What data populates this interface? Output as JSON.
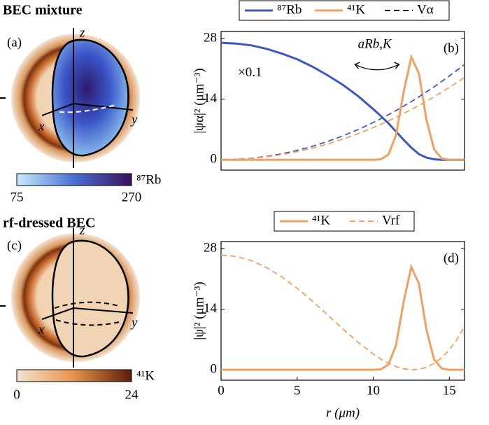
{
  "chart_data": [
    {
      "type": "line",
      "panel_label": "(b)",
      "y_label": "|ψα|² (μm⁻³)",
      "annotations": [
        "×0.1",
        "aRb,K"
      ],
      "x": [
        0,
        1,
        2,
        3,
        4,
        5,
        6,
        7,
        8,
        9,
        10,
        10.5,
        11,
        11.5,
        12,
        12.5,
        13,
        13.5,
        14,
        14.5,
        15,
        15.5,
        16
      ],
      "xlim": [
        0,
        16
      ],
      "ylim": [
        -2.4,
        29.6
      ],
      "yticks": [
        0,
        14,
        28
      ],
      "series": [
        {
          "name": "⁸⁷Rb",
          "color": "#3d57c7",
          "dash": "solid",
          "values": [
            27,
            26.8,
            26.4,
            25.6,
            24.5,
            23.2,
            21.5,
            19.5,
            17.3,
            14.7,
            11.7,
            10.1,
            8.4,
            6.5,
            4.6,
            2.8,
            1.3,
            0.5,
            0.1,
            0,
            0,
            0,
            0
          ]
        },
        {
          "name": "⁴¹K",
          "color": "#f0a060",
          "dash": "solid",
          "values": [
            0,
            0,
            0,
            0,
            0,
            0,
            0,
            0,
            0,
            0,
            0,
            0.1,
            1.2,
            5.7,
            15.7,
            23.7,
            19.9,
            9.2,
            2.4,
            0.3,
            0,
            0,
            0
          ]
        },
        {
          "name": "Vα",
          "color": "#000000",
          "dash": "dashed",
          "values": null
        },
        {
          "name": null,
          "color": "#3d57c7",
          "dash": "dashed",
          "values": [
            0,
            0.09,
            0.34,
            0.77,
            1.38,
            2.15,
            3.09,
            4.21,
            5.5,
            6.96,
            8.59,
            9.47,
            10.4,
            11.36,
            12.38,
            13.43,
            14.52,
            15.66,
            16.84,
            18.07,
            19.34,
            20.64,
            22
          ]
        },
        {
          "name": null,
          "color": "#f0a060",
          "dash": "dashed",
          "values": [
            0,
            0.07,
            0.3,
            0.67,
            1.19,
            1.86,
            2.67,
            3.64,
            4.75,
            6.01,
            7.42,
            8.18,
            8.98,
            9.81,
            10.69,
            11.59,
            12.54,
            13.52,
            14.54,
            15.6,
            16.7,
            17.83,
            19
          ]
        }
      ]
    },
    {
      "type": "line",
      "panel_label": "(d)",
      "y_label": "|ψ|² (μm⁻³)",
      "x_label": "r (μm)",
      "x": [
        0,
        1,
        2,
        3,
        4,
        5,
        6,
        7,
        8,
        9,
        10,
        10.5,
        11,
        11.5,
        12,
        12.5,
        13,
        13.5,
        14,
        14.5,
        15,
        15.5,
        16
      ],
      "xlim": [
        0,
        16
      ],
      "ylim": [
        -2.4,
        29.6
      ],
      "xticks": [
        0,
        5,
        10,
        15
      ],
      "yticks": [
        0,
        14,
        28
      ],
      "series": [
        {
          "name": "⁴¹K",
          "color": "#f0a060",
          "dash": "solid",
          "values": [
            0,
            0,
            0,
            0,
            0,
            0,
            0,
            0,
            0,
            0,
            0,
            0.1,
            1.2,
            5.7,
            15.7,
            23.7,
            19.9,
            9.2,
            2.4,
            0.3,
            0,
            0,
            0
          ]
        },
        {
          "name": "Vrf",
          "color": "#f0a060",
          "dash": "dashed",
          "values": [
            26.5,
            26.17,
            25.18,
            23.58,
            21.43,
            18.81,
            15.85,
            12.67,
            9.44,
            6.36,
            3.63,
            2.48,
            1.5,
            0.74,
            0.23,
            0.01,
            0.11,
            0.58,
            1.45,
            2.78,
            4.61,
            6.97,
            9.94
          ]
        }
      ]
    }
  ],
  "illustrations": [
    {
      "title": "BEC mixture",
      "label": "(a)",
      "axes": [
        "z",
        "x",
        "y"
      ],
      "colorbar": {
        "min": 75,
        "max": 270,
        "species": "⁸⁷Rb"
      }
    },
    {
      "title": "rf-dressed BEC",
      "label": "(c)",
      "axes": [
        "z",
        "x",
        "y"
      ],
      "colorbar": {
        "min": 0,
        "max": 24,
        "species": "⁴¹K"
      }
    }
  ]
}
